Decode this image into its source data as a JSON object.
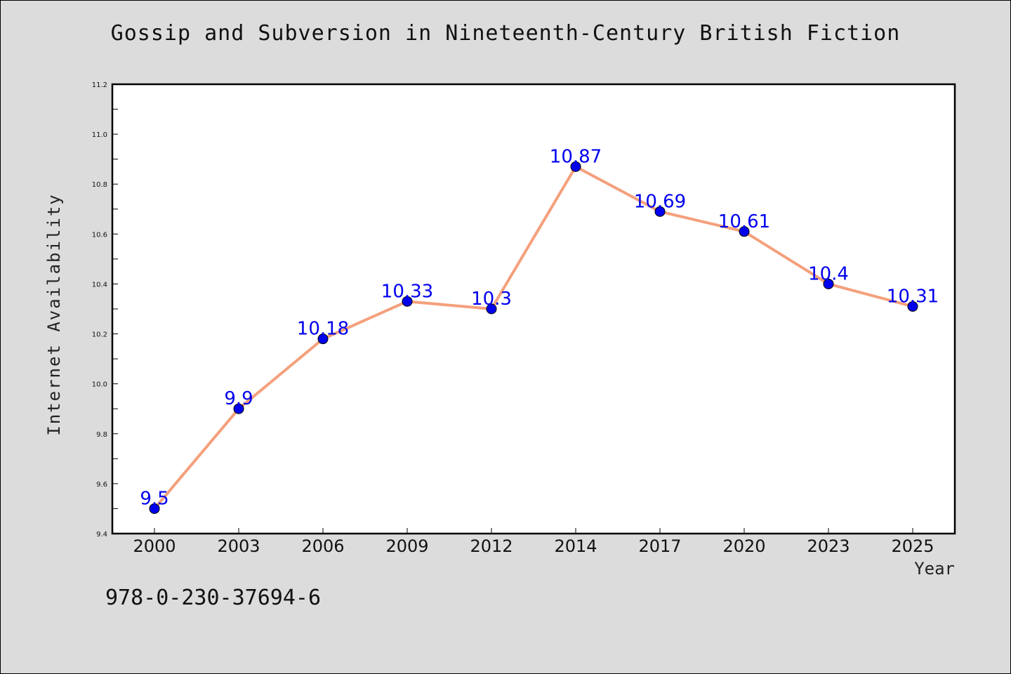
{
  "title": "Gossip and Subversion in Nineteenth-Century British Fiction",
  "footer_code": "978-0-230-37694-6",
  "chart_data": {
    "type": "line",
    "title": "Gossip and Subversion in Nineteenth-Century British Fiction",
    "xlabel": "Year",
    "ylabel": "Internet Availability",
    "categories": [
      "2000",
      "2003",
      "2006",
      "2009",
      "2012",
      "2014",
      "2017",
      "2020",
      "2023",
      "2025"
    ],
    "series": [
      {
        "values": [
          9.5,
          9.9,
          10.18,
          10.33,
          10.3,
          10.87,
          10.69,
          10.61,
          10.4,
          10.31
        ],
        "labels": [
          "9.5",
          "9.9",
          "10.18",
          "10.33",
          "10.3",
          "10.87",
          "10.69",
          "10.61",
          "10.4",
          "10.31"
        ],
        "line_color": "#f4a07c",
        "marker_color": "#0000ee",
        "label_color": "#0000ee"
      }
    ],
    "ylim": [
      9.4,
      11.2
    ],
    "yticks": [
      "9.4",
      "9.6",
      "9.8",
      "10.0",
      "10.2",
      "10.4",
      "10.6",
      "10.8",
      "11.0",
      "11.2"
    ],
    "grid": false,
    "legend": "none"
  }
}
